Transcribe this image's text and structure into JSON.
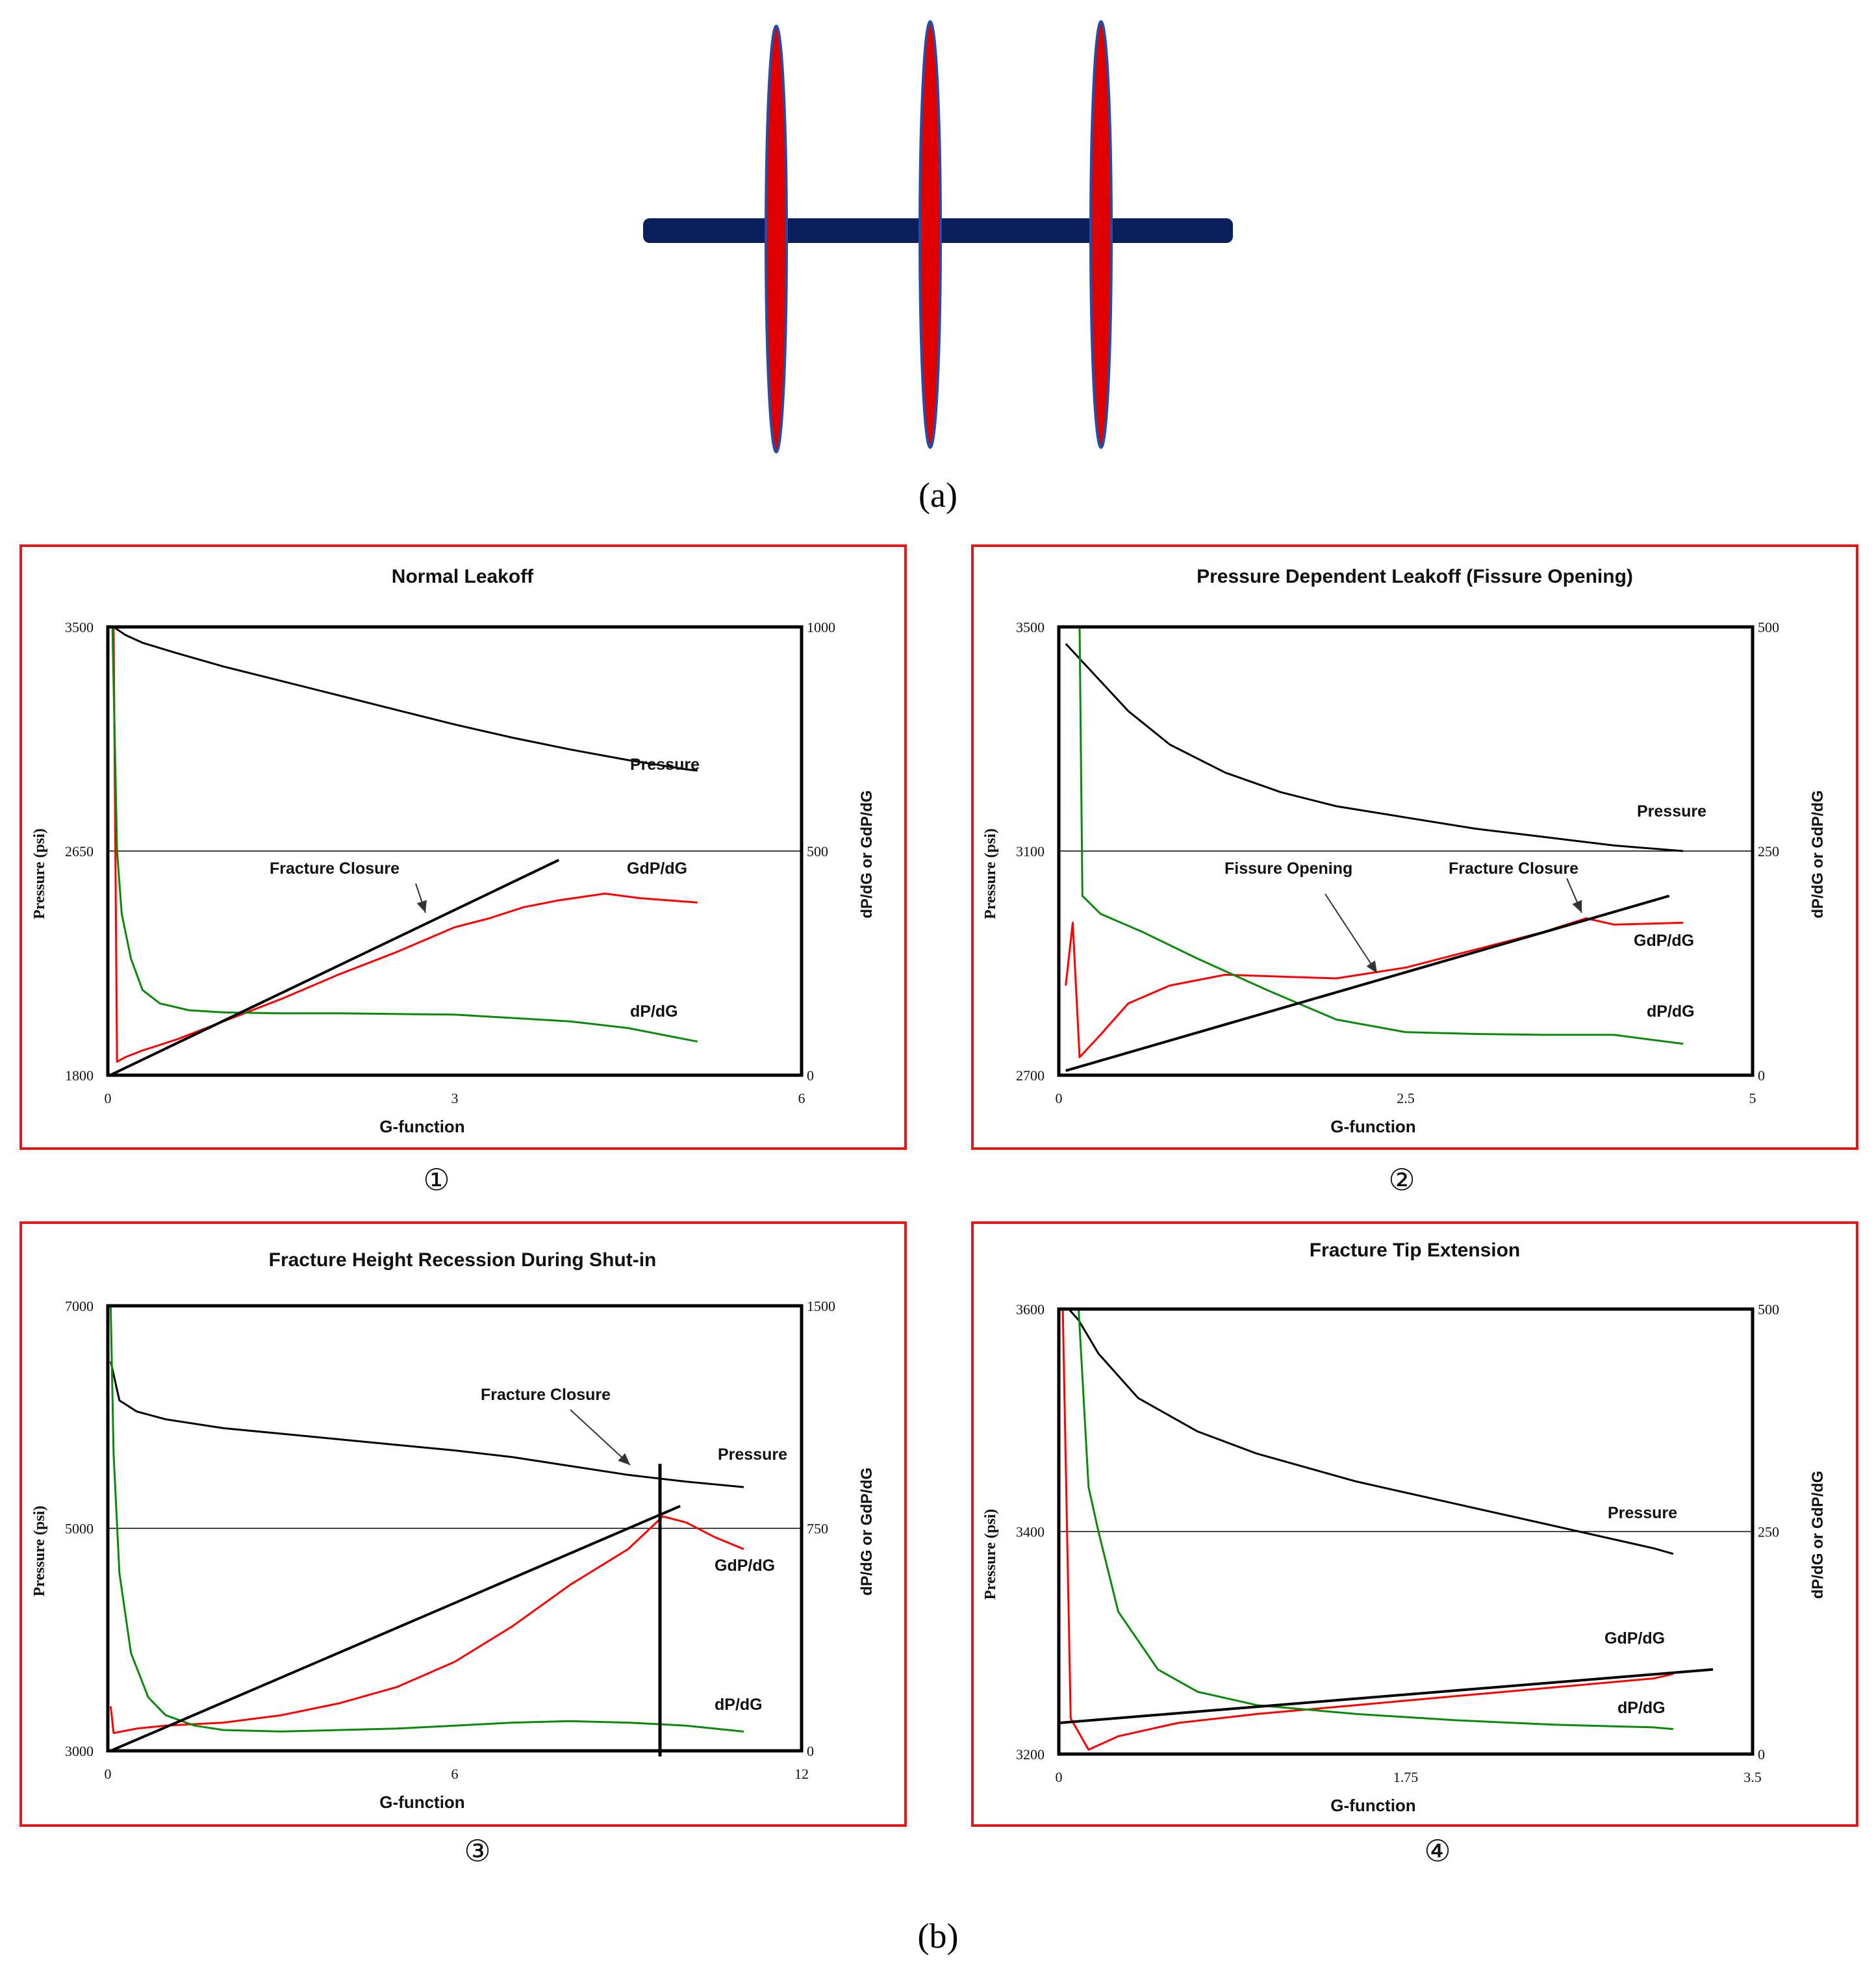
{
  "colors": {
    "pipe": "#0b1f5c",
    "fracture_fill": "#e00000",
    "fracture_edge": "#1f4fa8",
    "panel_border": "#e01a1a",
    "pressure": "#000000",
    "gdpdg": "#ff0000",
    "dpdg": "#0a8a0a",
    "tangent": "#000000"
  },
  "figure": {
    "label_a": "(a)",
    "label_b": "(b)"
  },
  "diagram_a": {
    "fracture_count": 3
  },
  "chart_data": [
    {
      "type": "line",
      "number": "①",
      "title": "Normal Leakoff",
      "xlabel": "G-function",
      "ylabel": "Pressure (psi)",
      "y2label": "dP/dG or GdP/dG",
      "xlim": [
        0,
        6
      ],
      "ylim": [
        1800,
        3500
      ],
      "y2lim": [
        0,
        1000
      ],
      "xticks": [
        "0",
        "3",
        "6"
      ],
      "yticks": [
        "1800",
        "2650",
        "3500"
      ],
      "y2ticks": [
        "0",
        "500",
        "1000"
      ],
      "mid_gridline": 2650,
      "annotations": [
        {
          "text": "Pressure"
        },
        {
          "text": "GdP/dG"
        },
        {
          "text": "dP/dG"
        },
        {
          "text": "Fracture Closure"
        }
      ],
      "series": [
        {
          "name": "Pressure",
          "axis": "left",
          "values": [
            [
              0.05,
              3500
            ],
            [
              0.15,
              3470
            ],
            [
              0.3,
              3440
            ],
            [
              0.6,
              3400
            ],
            [
              1.0,
              3350
            ],
            [
              1.5,
              3295
            ],
            [
              2.0,
              3240
            ],
            [
              2.5,
              3185
            ],
            [
              3.0,
              3130
            ],
            [
              3.5,
              3080
            ],
            [
              4.0,
              3035
            ],
            [
              4.5,
              2995
            ],
            [
              5.0,
              2960
            ],
            [
              5.1,
              2955
            ]
          ]
        },
        {
          "name": "GdP/dG",
          "axis": "right",
          "values": [
            [
              0.05,
              1000
            ],
            [
              0.08,
              30
            ],
            [
              0.15,
              40
            ],
            [
              0.3,
              55
            ],
            [
              0.6,
              80
            ],
            [
              1.0,
              120
            ],
            [
              1.5,
              170
            ],
            [
              2.0,
              225
            ],
            [
              2.5,
              275
            ],
            [
              3.0,
              330
            ],
            [
              3.3,
              350
            ],
            [
              3.6,
              375
            ],
            [
              3.9,
              390
            ],
            [
              4.3,
              405
            ],
            [
              4.6,
              395
            ],
            [
              5.1,
              385
            ]
          ]
        },
        {
          "name": "dP/dG",
          "axis": "right",
          "values": [
            [
              0.04,
              1000
            ],
            [
              0.08,
              500
            ],
            [
              0.12,
              360
            ],
            [
              0.2,
              260
            ],
            [
              0.3,
              190
            ],
            [
              0.45,
              160
            ],
            [
              0.7,
              145
            ],
            [
              1.0,
              140
            ],
            [
              1.5,
              138
            ],
            [
              2.0,
              138
            ],
            [
              3.0,
              135
            ],
            [
              4.0,
              120
            ],
            [
              4.5,
              105
            ],
            [
              5.1,
              75
            ]
          ]
        },
        {
          "name": "Tangent",
          "axis": "right",
          "values": [
            [
              0.02,
              0
            ],
            [
              3.9,
              480
            ]
          ]
        }
      ]
    },
    {
      "type": "line",
      "number": "②",
      "title": "Pressure Dependent Leakoff (Fissure Opening)",
      "xlabel": "G-function",
      "ylabel": "Pressure (psi)",
      "y2label": "dP/dG or GdP/dG",
      "xlim": [
        0,
        5
      ],
      "ylim": [
        2700,
        3500
      ],
      "y2lim": [
        0,
        500
      ],
      "xticks": [
        "0",
        "2.5",
        "5"
      ],
      "yticks": [
        "2700",
        "3100",
        "3500"
      ],
      "y2ticks": [
        "0",
        "250",
        "500"
      ],
      "mid_gridline": 3100,
      "annotations": [
        {
          "text": "Pressure"
        },
        {
          "text": "GdP/dG"
        },
        {
          "text": "dP/dG"
        },
        {
          "text": "Fissure Opening"
        },
        {
          "text": "Fracture Closure"
        }
      ],
      "series": [
        {
          "name": "Pressure",
          "axis": "left",
          "values": [
            [
              0.05,
              3470
            ],
            [
              0.2,
              3430
            ],
            [
              0.5,
              3350
            ],
            [
              0.8,
              3290
            ],
            [
              1.2,
              3240
            ],
            [
              1.6,
              3205
            ],
            [
              2.0,
              3180
            ],
            [
              2.5,
              3160
            ],
            [
              3.0,
              3140
            ],
            [
              3.5,
              3125
            ],
            [
              4.0,
              3110
            ],
            [
              4.5,
              3100
            ]
          ]
        },
        {
          "name": "GdP/dG",
          "axis": "right",
          "values": [
            [
              0.05,
              100
            ],
            [
              0.1,
              170
            ],
            [
              0.15,
              20
            ],
            [
              0.3,
              45
            ],
            [
              0.5,
              80
            ],
            [
              0.8,
              100
            ],
            [
              1.2,
              112
            ],
            [
              1.6,
              110
            ],
            [
              2.0,
              108
            ],
            [
              2.5,
              120
            ],
            [
              3.0,
              140
            ],
            [
              3.5,
              160
            ],
            [
              3.8,
              175
            ],
            [
              4.0,
              168
            ],
            [
              4.5,
              170
            ]
          ]
        },
        {
          "name": "dP/dG",
          "axis": "right",
          "values": [
            [
              0.15,
              500
            ],
            [
              0.17,
              200
            ],
            [
              0.3,
              180
            ],
            [
              0.6,
              160
            ],
            [
              1.0,
              130
            ],
            [
              1.5,
              95
            ],
            [
              2.0,
              62
            ],
            [
              2.5,
              48
            ],
            [
              3.0,
              46
            ],
            [
              3.5,
              45
            ],
            [
              4.0,
              45
            ],
            [
              4.5,
              35
            ]
          ]
        },
        {
          "name": "Tangent",
          "axis": "right",
          "values": [
            [
              0.05,
              5
            ],
            [
              4.4,
              200
            ]
          ]
        }
      ]
    },
    {
      "type": "line",
      "number": "③",
      "title": "Fracture Height Recession During Shut-in",
      "xlabel": "G-function",
      "ylabel": "Pressure (psi)",
      "y2label": "dP/dG or GdP/dG",
      "xlim": [
        0,
        12
      ],
      "ylim": [
        3000,
        7000
      ],
      "y2lim": [
        0,
        1500
      ],
      "xticks": [
        "0",
        "6",
        "12"
      ],
      "yticks": [
        "3000",
        "5000",
        "7000"
      ],
      "y2ticks": [
        "0",
        "750",
        "1500"
      ],
      "mid_gridline": 5000,
      "annotations": [
        {
          "text": "Pressure"
        },
        {
          "text": "GdP/dG"
        },
        {
          "text": "dP/dG"
        },
        {
          "text": "Fracture Closure"
        }
      ],
      "series": [
        {
          "name": "Pressure",
          "axis": "left",
          "values": [
            [
              0.05,
              6500
            ],
            [
              0.2,
              6150
            ],
            [
              0.5,
              6050
            ],
            [
              1.0,
              5980
            ],
            [
              2.0,
              5900
            ],
            [
              3.0,
              5850
            ],
            [
              4.0,
              5800
            ],
            [
              5.0,
              5750
            ],
            [
              6.0,
              5700
            ],
            [
              7.0,
              5640
            ],
            [
              8.0,
              5560
            ],
            [
              9.0,
              5480
            ],
            [
              10.0,
              5420
            ],
            [
              11.0,
              5370
            ]
          ]
        },
        {
          "name": "GdP/dG",
          "axis": "right",
          "values": [
            [
              0.05,
              150
            ],
            [
              0.1,
              60
            ],
            [
              0.5,
              75
            ],
            [
              1.0,
              85
            ],
            [
              2.0,
              95
            ],
            [
              3.0,
              120
            ],
            [
              4.0,
              160
            ],
            [
              5.0,
              215
            ],
            [
              6.0,
              300
            ],
            [
              7.0,
              420
            ],
            [
              8.0,
              560
            ],
            [
              9.0,
              680
            ],
            [
              9.6,
              790
            ],
            [
              10.0,
              770
            ],
            [
              10.5,
              720
            ],
            [
              11.0,
              680
            ]
          ]
        },
        {
          "name": "dP/dG",
          "axis": "right",
          "values": [
            [
              0.05,
              1500
            ],
            [
              0.1,
              1000
            ],
            [
              0.2,
              600
            ],
            [
              0.4,
              330
            ],
            [
              0.7,
              180
            ],
            [
              1.0,
              120
            ],
            [
              1.5,
              85
            ],
            [
              2.0,
              70
            ],
            [
              3.0,
              65
            ],
            [
              4.0,
              70
            ],
            [
              5.0,
              75
            ],
            [
              6.0,
              85
            ],
            [
              7.0,
              95
            ],
            [
              8.0,
              100
            ],
            [
              9.0,
              95
            ],
            [
              10.0,
              85
            ],
            [
              11.0,
              65
            ]
          ]
        },
        {
          "name": "Tangent",
          "axis": "right",
          "values": [
            [
              0.05,
              0
            ],
            [
              9.9,
              825
            ]
          ]
        },
        {
          "name": "Closure marker",
          "axis": "left",
          "values": [
            [
              9.55,
              2950
            ],
            [
              9.55,
              5580
            ]
          ]
        }
      ]
    },
    {
      "type": "line",
      "number": "④",
      "title": "Fracture Tip Extension",
      "xlabel": "G-function",
      "ylabel": "Pressure (psi)",
      "y2label": "dP/dG or GdP/dG",
      "xlim": [
        0,
        3.5
      ],
      "ylim": [
        3200,
        3600
      ],
      "y2lim": [
        0,
        500
      ],
      "xticks": [
        "0",
        "1.75",
        "3.5"
      ],
      "yticks": [
        "3200",
        "3400",
        "3600"
      ],
      "y2ticks": [
        "0",
        "250",
        "500"
      ],
      "mid_gridline": 3400,
      "annotations": [
        {
          "text": "Pressure"
        },
        {
          "text": "GdP/dG"
        },
        {
          "text": "dP/dG"
        }
      ],
      "series": [
        {
          "name": "Pressure",
          "axis": "left",
          "values": [
            [
              0.05,
              3600
            ],
            [
              0.1,
              3590
            ],
            [
              0.2,
              3560
            ],
            [
              0.4,
              3520
            ],
            [
              0.7,
              3490
            ],
            [
              1.0,
              3470
            ],
            [
              1.5,
              3445
            ],
            [
              2.0,
              3425
            ],
            [
              2.5,
              3405
            ],
            [
              3.0,
              3385
            ],
            [
              3.1,
              3380
            ]
          ]
        },
        {
          "name": "GdP/dG",
          "axis": "right",
          "values": [
            [
              0.02,
              500
            ],
            [
              0.06,
              40
            ],
            [
              0.15,
              5
            ],
            [
              0.3,
              20
            ],
            [
              0.6,
              35
            ],
            [
              1.0,
              45
            ],
            [
              1.5,
              55
            ],
            [
              2.0,
              65
            ],
            [
              2.5,
              75
            ],
            [
              3.0,
              85
            ],
            [
              3.1,
              90
            ]
          ]
        },
        {
          "name": "dP/dG",
          "axis": "right",
          "values": [
            [
              0.1,
              500
            ],
            [
              0.15,
              300
            ],
            [
              0.2,
              250
            ],
            [
              0.3,
              160
            ],
            [
              0.5,
              95
            ],
            [
              0.7,
              70
            ],
            [
              1.0,
              55
            ],
            [
              1.5,
              45
            ],
            [
              2.0,
              38
            ],
            [
              2.5,
              33
            ],
            [
              3.0,
              30
            ],
            [
              3.1,
              28
            ]
          ]
        },
        {
          "name": "Tangent",
          "axis": "right",
          "values": [
            [
              0.0,
              35
            ],
            [
              3.3,
              95
            ]
          ]
        }
      ]
    }
  ]
}
